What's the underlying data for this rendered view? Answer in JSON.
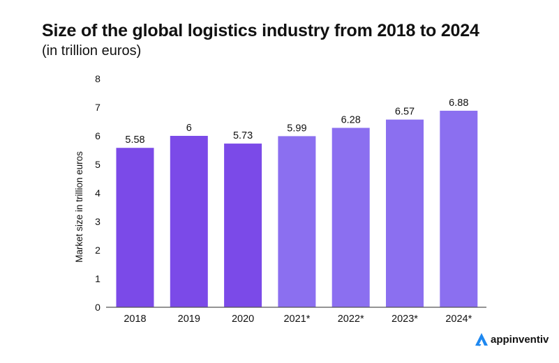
{
  "chart_data": {
    "type": "bar",
    "title": "Size of the global logistics industry from 2018 to 2024",
    "subtitle": "(in trillion euros)",
    "xlabel": "",
    "ylabel": "Market size in trillion euros",
    "categories": [
      "2018",
      "2019",
      "2020",
      "2021*",
      "2022*",
      "2023*",
      "2024*"
    ],
    "values": [
      5.58,
      6,
      5.73,
      5.99,
      6.28,
      6.57,
      6.88
    ],
    "data_labels": [
      "5.58",
      "6",
      "5.73",
      "5.99",
      "6.28",
      "6.57",
      "6.88"
    ],
    "ylim": [
      0,
      8
    ],
    "yticks": [
      0,
      1,
      2,
      3,
      4,
      5,
      6,
      7,
      8
    ],
    "grid": false,
    "legend": "none",
    "bar_colors": [
      "#7b4ae8",
      "#7b4ae8",
      "#7b4ae8",
      "#8b6ff0",
      "#8b6ff0",
      "#8b6ff0",
      "#8b6ff0"
    ]
  },
  "branding": {
    "logo_text": "appinventiv",
    "logo_color": "#1e88f0"
  }
}
